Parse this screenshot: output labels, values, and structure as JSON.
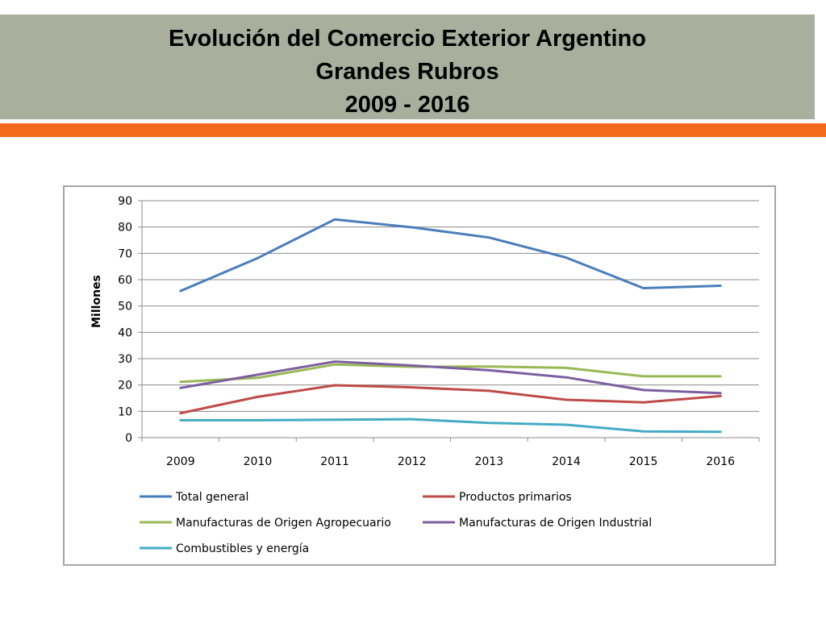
{
  "slide": {
    "title_lines": [
      "Evolución del Comercio Exterior Argentino",
      "Grandes Rubros",
      "2009 - 2016"
    ]
  },
  "colors": {
    "title_band": "#a9ae9d",
    "accent_bar": "#f26b1d"
  },
  "chart_data": {
    "type": "line",
    "title": "",
    "xlabel": "",
    "ylabel": "Millones",
    "categories": [
      "2009",
      "2010",
      "2011",
      "2012",
      "2013",
      "2014",
      "2015",
      "2016"
    ],
    "ylim": [
      0,
      90
    ],
    "yticks": [
      0,
      10,
      20,
      30,
      40,
      50,
      60,
      70,
      80,
      90
    ],
    "grid": true,
    "legend_position": "bottom",
    "series": [
      {
        "name": "Total general",
        "color": "#4a7ebb",
        "values": [
          55.7,
          68.2,
          82.9,
          79.9,
          76.0,
          68.4,
          56.8,
          57.7
        ]
      },
      {
        "name": "Productos primarios",
        "color": "#be4b48",
        "values": [
          9.3,
          15.5,
          19.9,
          19.1,
          17.8,
          14.4,
          13.4,
          15.8
        ]
      },
      {
        "name": "Manufacturas de Origen Agropecuario",
        "color": "#98b954",
        "values": [
          21.2,
          22.7,
          27.8,
          26.9,
          27.0,
          26.5,
          23.3,
          23.3
        ]
      },
      {
        "name": "Manufacturas de Origen Industrial",
        "color": "#7d5fa0",
        "values": [
          18.9,
          23.9,
          28.9,
          27.4,
          25.6,
          22.9,
          18.1,
          16.9
        ]
      },
      {
        "name": "Combustibles y energía",
        "color": "#46aac5",
        "values": [
          6.6,
          6.6,
          6.8,
          7.0,
          5.6,
          4.9,
          2.4,
          2.2
        ]
      }
    ]
  }
}
